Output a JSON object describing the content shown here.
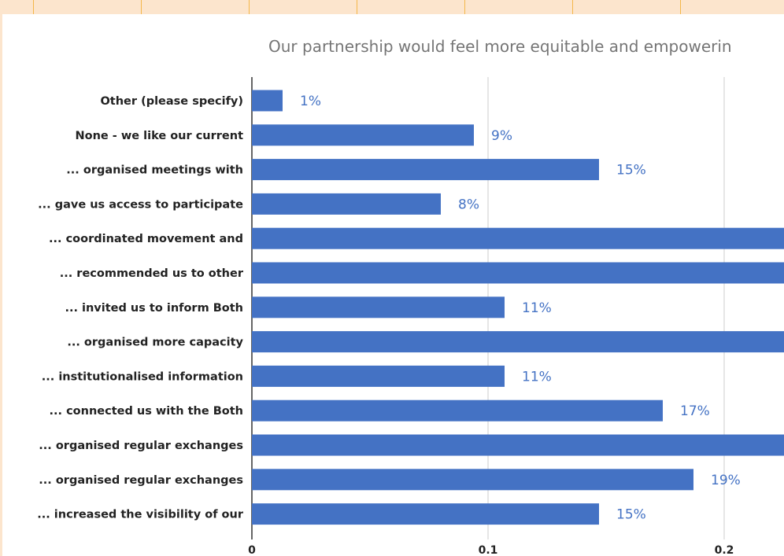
{
  "colors": {
    "bar": "#4472C4",
    "data_label": "#4472C4",
    "grid": "#CCCCCC",
    "axis": "#333333",
    "title": "#757575",
    "sheet_background": "#FCE5CD",
    "cell_border": "#F4B74A"
  },
  "chart_data": {
    "type": "bar",
    "orientation": "horizontal",
    "title": "Our partnership would feel more equitable and empowerin",
    "categories": [
      "Other (please specify)",
      "None - we like our current",
      "... organised meetings with",
      "... gave us access to participate",
      "... coordinated movement and",
      "... recommended us to other",
      "... invited us to inform Both",
      "... organised more capacity",
      "... institutionalised information",
      "... connected us with the Both",
      "... organised regular exchanges",
      "... organised regular exchanges",
      "... increased the visibility of our"
    ],
    "values": [
      0.013,
      0.094,
      0.147,
      0.08,
      0.24,
      0.24,
      0.107,
      0.24,
      0.107,
      0.174,
      0.24,
      0.187,
      0.147
    ],
    "data_labels": [
      "1%",
      "9%",
      "15%",
      "8%",
      "",
      "",
      "11%",
      "",
      "11%",
      "17%",
      "",
      "19%",
      "15%"
    ],
    "x_ticks": [
      0,
      0.1,
      0.2
    ],
    "x_tick_labels": [
      "0",
      "0.1",
      "0.2"
    ],
    "xlim": [
      0,
      0.226
    ],
    "grid": true,
    "legend": "none"
  }
}
